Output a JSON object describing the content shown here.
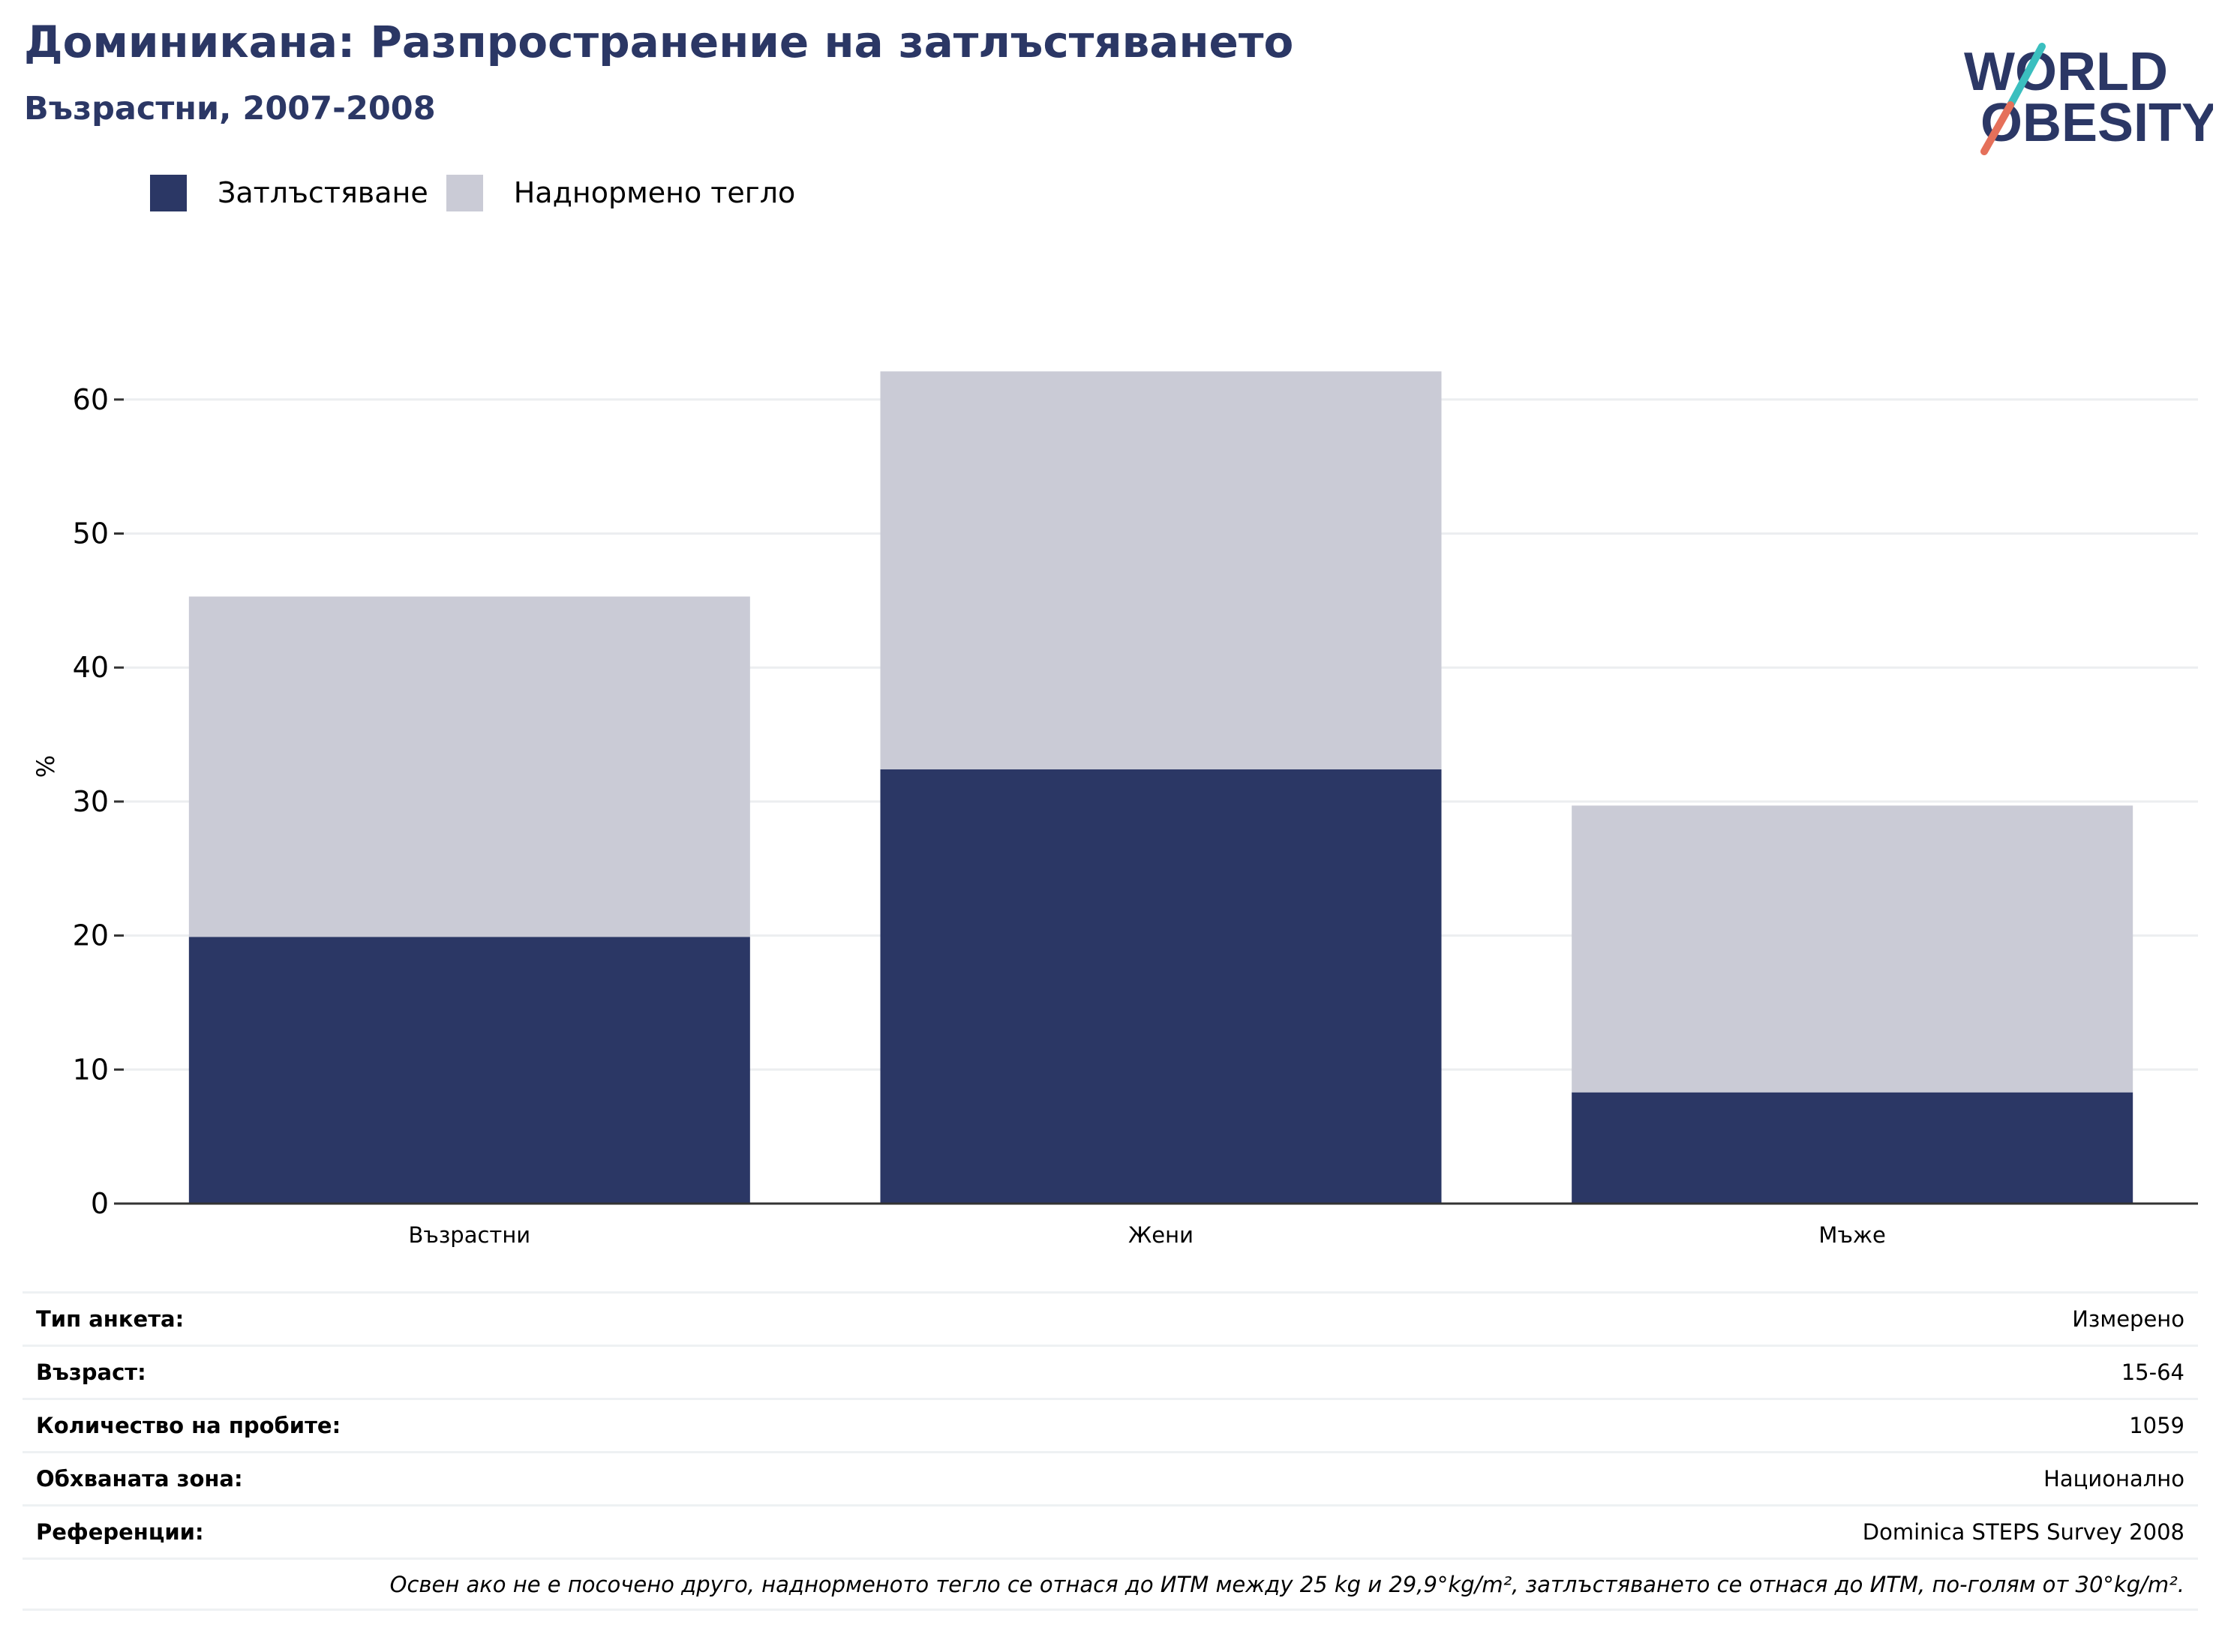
{
  "header": {
    "title": "Доминикана: Разпространение на затлъстяването",
    "subtitle": "Възрастни, 2007-2008"
  },
  "logo": {
    "line1": "WORLD",
    "line2": "OBESITY",
    "colors": {
      "text": "#2b3765",
      "slash_top": "#3bbfbf",
      "slash_bottom": "#e5705a"
    }
  },
  "legend": [
    {
      "label": "Затлъстяване",
      "color": "#2b3765"
    },
    {
      "label": "Наднормено тегло",
      "color": "#cacbd6"
    }
  ],
  "chart_data": {
    "type": "bar",
    "stacked": true,
    "categories": [
      "Възрастни",
      "Жени",
      "Мъже"
    ],
    "series": [
      {
        "name": "Затлъстяване",
        "values": [
          19.9,
          32.4,
          8.3
        ],
        "color": "#2b3765"
      },
      {
        "name": "Наднормено тегло",
        "values": [
          25.4,
          29.7,
          21.4
        ],
        "color": "#cacbd6"
      }
    ],
    "ylabel": "%",
    "xlabel": "",
    "ylim": [
      0,
      63.5
    ],
    "yticks": [
      0,
      10,
      20,
      30,
      40,
      50,
      60
    ],
    "grid": true
  },
  "info": {
    "rows": [
      {
        "key": "Тип анкета:",
        "value": "Измерено"
      },
      {
        "key": "Възраст:",
        "value": "15-64"
      },
      {
        "key": "Количество на пробите:",
        "value": "1059"
      },
      {
        "key": "Обхваната зона:",
        "value": "Национално"
      },
      {
        "key": "Референции:",
        "value": "Dominica STEPS Survey 2008"
      }
    ],
    "note": "Освен ако не е посочено друго, наднорменото тегло се отнася до ИТМ между 25 kg и 29,9°kg/m², затлъстяването се отнася до ИТМ, по-голям от 30°kg/m²."
  }
}
